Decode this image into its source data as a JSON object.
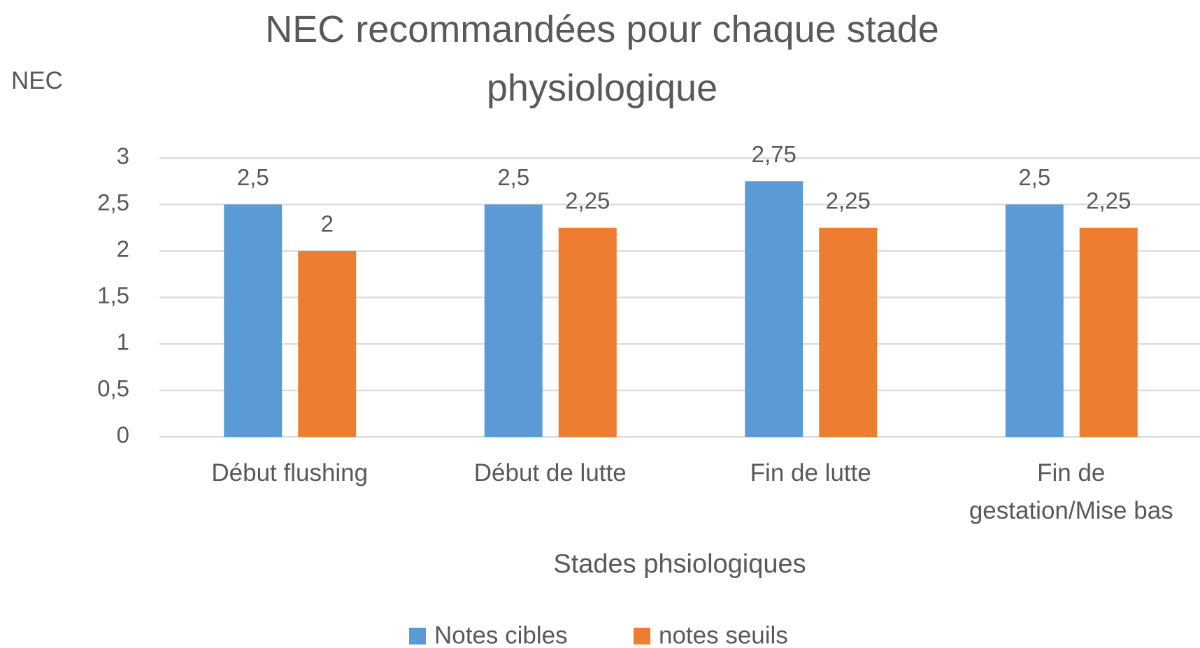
{
  "chart_data": {
    "type": "bar",
    "title": "NEC recommandées pour chaque stade physiologique",
    "y_label": "NEC",
    "x_label": "Stades phsiologiques",
    "categories": [
      "Début flushing",
      "Début de lutte",
      "Fin de lutte",
      "Fin de gestation/Mise bas"
    ],
    "series": [
      {
        "name": "Notes cibles",
        "color": "#5b9bd5",
        "values": [
          2.5,
          2.5,
          2.75,
          2.5
        ],
        "value_labels": [
          "2,5",
          "2,5",
          "2,75",
          "2,5"
        ]
      },
      {
        "name": "notes seuils",
        "color": "#ed7d31",
        "values": [
          2,
          2.25,
          2.25,
          2.25
        ],
        "value_labels": [
          "2",
          "2,25",
          "2,25",
          "2,25"
        ]
      }
    ],
    "ylim": [
      0,
      3
    ],
    "yticks": [
      0,
      {
        "value": 0.5,
        "label": "0,5"
      },
      1,
      {
        "value": 1.5,
        "label": "1,5"
      },
      2,
      {
        "value": 2.5,
        "label": "2,5"
      },
      3
    ],
    "grid": true,
    "legend": "bottom"
  }
}
